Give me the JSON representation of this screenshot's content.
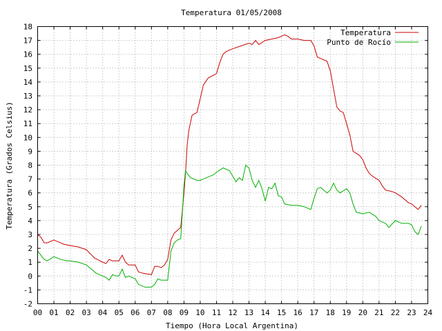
{
  "chart_data": {
    "type": "line",
    "title": "Temperatura 01/05/2008",
    "xlabel": "Tiempo (Hora Local Argentina)",
    "ylabel": "Temperatura (Grados Celsius)",
    "xlim": [
      0,
      24
    ],
    "ylim": [
      -2,
      18
    ],
    "grid": true,
    "legend_position": "top-right",
    "x_tick_labels": [
      "00",
      "01",
      "02",
      "03",
      "04",
      "05",
      "06",
      "07",
      "08",
      "09",
      "10",
      "11",
      "12",
      "13",
      "14",
      "15",
      "16",
      "17",
      "18",
      "19",
      "20",
      "21",
      "22",
      "23",
      "24"
    ],
    "y_tick_labels": [
      "-2",
      "-1",
      "0",
      "1",
      "2",
      "3",
      "4",
      "5",
      "6",
      "7",
      "8",
      "9",
      "10",
      "11",
      "12",
      "13",
      "14",
      "15",
      "16",
      "17",
      "18"
    ],
    "series": [
      {
        "name": "Temperatura",
        "color": "#cc0000",
        "x": [
          0,
          0.2,
          0.4,
          0.6,
          1.0,
          1.2,
          1.4,
          1.6,
          2.0,
          2.5,
          3.0,
          3.5,
          4.0,
          4.2,
          4.4,
          4.6,
          5.0,
          5.2,
          5.4,
          5.6,
          6.0,
          6.2,
          6.5,
          7.0,
          7.2,
          7.4,
          7.6,
          7.8,
          8.0,
          8.2,
          8.4,
          8.6,
          8.8,
          9.0,
          9.1,
          9.2,
          9.3,
          9.5,
          9.8,
          10.0,
          10.2,
          10.5,
          11.0,
          11.2,
          11.4,
          11.6,
          12.0,
          12.5,
          13.0,
          13.2,
          13.4,
          13.6,
          14.0,
          14.4,
          14.8,
          15.0,
          15.2,
          15.4,
          15.6,
          16.0,
          16.4,
          16.8,
          17.0,
          17.2,
          17.4,
          17.8,
          18.0,
          18.2,
          18.4,
          18.6,
          18.8,
          19.0,
          19.2,
          19.4,
          19.8,
          20.0,
          20.2,
          20.4,
          20.6,
          21.0,
          21.2,
          21.4,
          21.8,
          22.0,
          22.4,
          22.8,
          23.0,
          23.2,
          23.4,
          23.6
        ],
        "values": [
          3.0,
          2.8,
          2.4,
          2.4,
          2.6,
          2.5,
          2.4,
          2.3,
          2.2,
          2.1,
          1.9,
          1.3,
          1.0,
          0.9,
          1.2,
          1.1,
          1.1,
          1.5,
          1.0,
          0.8,
          0.8,
          0.3,
          0.2,
          0.1,
          0.7,
          0.7,
          0.6,
          0.8,
          1.2,
          2.6,
          3.1,
          3.3,
          3.5,
          6.0,
          7.5,
          9.5,
          10.5,
          11.6,
          11.8,
          12.8,
          13.8,
          14.3,
          14.6,
          15.4,
          16.0,
          16.2,
          16.4,
          16.6,
          16.8,
          16.7,
          17.0,
          16.7,
          17.0,
          17.1,
          17.2,
          17.3,
          17.4,
          17.3,
          17.1,
          17.1,
          17.0,
          17.0,
          16.6,
          15.8,
          15.7,
          15.5,
          14.8,
          13.5,
          12.2,
          11.9,
          11.8,
          11.0,
          10.2,
          9.0,
          8.7,
          8.4,
          7.8,
          7.4,
          7.2,
          6.9,
          6.5,
          6.2,
          6.1,
          6.0,
          5.7,
          5.3,
          5.2,
          5.0,
          4.8,
          5.1
        ]
      },
      {
        "name": "Punto de Rocío",
        "color": "#00b000",
        "x": [
          0,
          0.2,
          0.4,
          0.6,
          1.0,
          1.4,
          1.8,
          2.0,
          2.5,
          3.0,
          3.3,
          3.6,
          4.0,
          4.2,
          4.4,
          4.6,
          4.8,
          5.0,
          5.2,
          5.4,
          5.6,
          6.0,
          6.2,
          6.6,
          7.0,
          7.2,
          7.4,
          7.6,
          8.0,
          8.2,
          8.4,
          8.6,
          8.8,
          9.0,
          9.1,
          9.2,
          9.4,
          9.6,
          9.8,
          10.0,
          10.2,
          10.4,
          10.6,
          10.8,
          11.0,
          11.4,
          11.8,
          12.0,
          12.2,
          12.4,
          12.6,
          12.8,
          13.0,
          13.2,
          13.4,
          13.6,
          13.8,
          14.0,
          14.2,
          14.4,
          14.6,
          14.8,
          15.0,
          15.2,
          15.6,
          16.0,
          16.4,
          16.8,
          17.0,
          17.2,
          17.4,
          17.8,
          18.0,
          18.2,
          18.4,
          18.6,
          19.0,
          19.2,
          19.4,
          19.6,
          20.0,
          20.4,
          20.8,
          21.0,
          21.4,
          21.6,
          22.0,
          22.4,
          22.8,
          23.0,
          23.2,
          23.4,
          23.6
        ],
        "values": [
          1.8,
          1.5,
          1.2,
          1.1,
          1.4,
          1.2,
          1.1,
          1.1,
          1.0,
          0.8,
          0.5,
          0.2,
          0.0,
          -0.1,
          -0.3,
          0.1,
          0.0,
          0.0,
          0.5,
          -0.1,
          0.0,
          -0.2,
          -0.6,
          -0.8,
          -0.8,
          -0.6,
          -0.2,
          -0.3,
          -0.3,
          1.8,
          2.4,
          2.6,
          2.7,
          6.5,
          7.6,
          7.4,
          7.1,
          7.0,
          6.9,
          6.9,
          7.0,
          7.1,
          7.2,
          7.3,
          7.5,
          7.8,
          7.6,
          7.2,
          6.8,
          7.1,
          6.9,
          8.0,
          7.8,
          6.9,
          6.4,
          6.9,
          6.3,
          5.4,
          6.4,
          6.3,
          6.7,
          5.8,
          5.7,
          5.2,
          5.1,
          5.1,
          5.0,
          4.8,
          5.6,
          6.3,
          6.4,
          6.0,
          6.2,
          6.7,
          6.2,
          6.0,
          6.3,
          6.0,
          5.2,
          4.6,
          4.5,
          4.6,
          4.3,
          4.0,
          3.8,
          3.5,
          4.0,
          3.8,
          3.8,
          3.7,
          3.2,
          3.0,
          3.6
        ]
      }
    ]
  }
}
